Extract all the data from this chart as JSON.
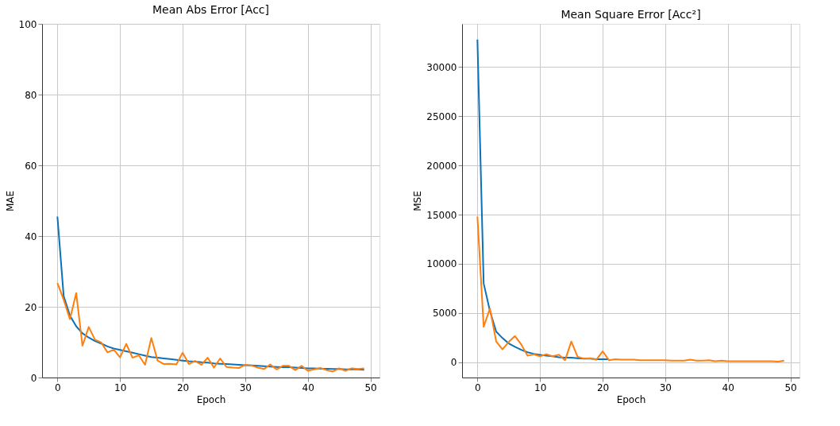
{
  "chart_data": [
    {
      "type": "line",
      "title": "Mean Abs Error [Acc]",
      "xlabel": "Epoch",
      "ylabel": "MAE",
      "x": [
        0,
        1,
        2,
        3,
        4,
        5,
        6,
        7,
        8,
        9,
        10,
        11,
        12,
        13,
        14,
        15,
        16,
        17,
        18,
        19,
        20,
        21,
        22,
        23,
        24,
        25,
        26,
        27,
        28,
        29,
        30,
        31,
        32,
        33,
        34,
        35,
        36,
        37,
        38,
        39,
        40,
        41,
        42,
        43,
        44,
        45,
        46,
        47,
        48,
        49
      ],
      "series": [
        {
          "color": "#0a72b8",
          "values": [
            45.5,
            23,
            17.5,
            14.5,
            12.5,
            11.3,
            10.3,
            9.6,
            8.8,
            8.2,
            7.8,
            7.4,
            7.0,
            6.6,
            6.2,
            5.8,
            5.6,
            5.4,
            5.2,
            5.0,
            4.8,
            4.6,
            4.5,
            4.3,
            4.2,
            4.0,
            3.9,
            3.8,
            3.7,
            3.6,
            3.5,
            3.4,
            3.3,
            3.2,
            3.1,
            3.0,
            2.9,
            2.9,
            2.8,
            2.7,
            2.6,
            2.6,
            2.5,
            2.5,
            2.4,
            2.4,
            2.3,
            2.3,
            2.3,
            2.2
          ]
        },
        {
          "color": "#ff7f0e",
          "values": [
            26.7,
            22,
            16.5,
            23.9,
            9,
            14.3,
            10.7,
            9.9,
            7.1,
            7.9,
            5.7,
            9.5,
            5.6,
            6.3,
            3.6,
            11.2,
            4.8,
            3.8,
            3.9,
            3.7,
            7.0,
            3.8,
            4.7,
            3.6,
            5.6,
            2.8,
            5.4,
            3.0,
            2.8,
            2.7,
            3.6,
            3.4,
            2.8,
            2.4,
            3.7,
            2.3,
            3.3,
            3.3,
            2.1,
            3.3,
            1.9,
            2.3,
            2.7,
            2.1,
            1.7,
            2.6,
            1.9,
            2.6,
            2.4,
            2.6
          ]
        }
      ],
      "xlim": [
        -2.45,
        51.45
      ],
      "xticks": [
        0,
        10,
        20,
        30,
        40,
        50
      ],
      "ylim": [
        0,
        100
      ],
      "yticks": [
        0,
        20,
        40,
        60,
        80,
        100
      ],
      "grid": true,
      "legend": false,
      "line_style": "solid",
      "marker": "none"
    },
    {
      "type": "line",
      "title": "Mean Square Error [Acc²]",
      "xlabel": "Epoch",
      "ylabel": "MSE",
      "x": [
        0,
        1,
        2,
        3,
        4,
        5,
        6,
        7,
        8,
        9,
        10,
        11,
        12,
        13,
        14,
        15,
        16,
        17,
        18,
        19,
        20,
        21,
        22,
        23,
        24,
        25,
        26,
        27,
        28,
        29,
        30,
        31,
        32,
        33,
        34,
        35,
        36,
        37,
        38,
        39,
        40,
        41,
        42,
        43,
        44,
        45,
        46,
        47,
        48,
        49
      ],
      "series": [
        {
          "color": "#0a72b8",
          "values": [
            32800,
            8000,
            5200,
            3100,
            2450,
            1900,
            1550,
            1250,
            1000,
            850,
            750,
            650,
            600,
            500,
            450,
            450,
            400,
            350,
            350,
            300,
            300,
            300,
            null,
            null,
            null,
            null,
            null,
            null,
            null,
            null,
            null,
            null,
            null,
            null,
            null,
            null,
            null,
            null,
            null,
            null,
            null,
            null,
            null,
            null,
            null,
            null,
            null,
            null,
            null,
            null
          ]
        },
        {
          "color": "#ff7f0e",
          "values": [
            14800,
            3600,
            5450,
            2100,
            1300,
            2050,
            2650,
            1800,
            650,
            800,
            600,
            800,
            600,
            750,
            200,
            2100,
            550,
            350,
            400,
            250,
            1100,
            200,
            300,
            250,
            250,
            250,
            200,
            200,
            200,
            200,
            200,
            150,
            150,
            150,
            250,
            150,
            150,
            200,
            100,
            150,
            100,
            100,
            100,
            100,
            100,
            100,
            100,
            100,
            50,
            150
          ]
        }
      ],
      "xlim": [
        -2.45,
        51.45
      ],
      "xticks": [
        0,
        10,
        20,
        30,
        40,
        50
      ],
      "ylim": [
        -1564,
        34394
      ],
      "yticks": [
        0,
        5000,
        10000,
        15000,
        20000,
        25000,
        30000
      ],
      "grid": true,
      "legend": false,
      "line_style": "solid",
      "marker": "none"
    }
  ]
}
